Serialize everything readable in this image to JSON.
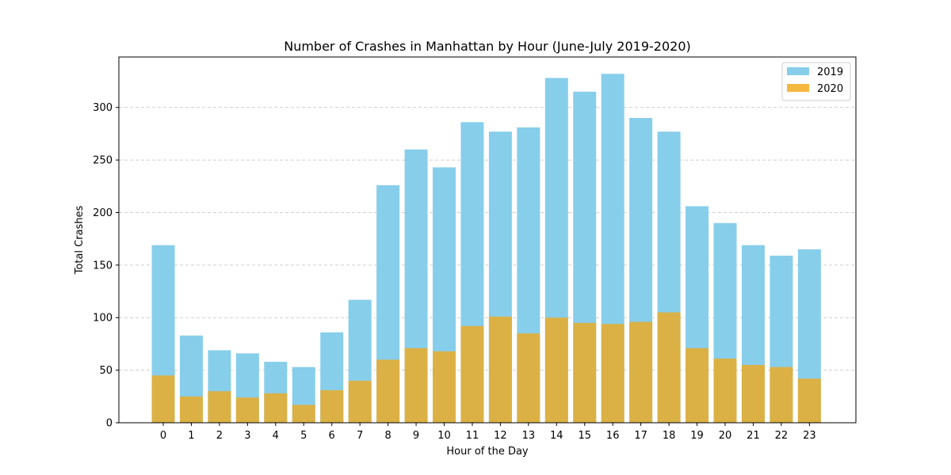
{
  "chart_data": {
    "type": "bar",
    "title": "Number of Crashes in Manhattan by Hour (June-July 2019-2020)",
    "xlabel": "Hour of the Day",
    "ylabel": "Total Crashes",
    "ylim": [
      0,
      348
    ],
    "yticks": [
      0,
      50,
      100,
      150,
      200,
      250,
      300
    ],
    "grid": "y-dashed",
    "legend_position": "top-right",
    "categories": [
      "0",
      "1",
      "2",
      "3",
      "4",
      "5",
      "6",
      "7",
      "8",
      "9",
      "10",
      "11",
      "12",
      "13",
      "14",
      "15",
      "16",
      "17",
      "18",
      "19",
      "20",
      "21",
      "22",
      "23"
    ],
    "series": [
      {
        "name": "2019",
        "color": "#87CEEB",
        "values": [
          169,
          83,
          69,
          66,
          58,
          53,
          86,
          117,
          226,
          260,
          243,
          286,
          277,
          281,
          328,
          315,
          332,
          290,
          277,
          206,
          190,
          169,
          159,
          165
        ]
      },
      {
        "name": "2020",
        "color": "#F5B83F",
        "values": [
          45,
          25,
          30,
          24,
          28,
          17,
          31,
          40,
          60,
          71,
          68,
          92,
          101,
          85,
          100,
          95,
          94,
          96,
          105,
          71,
          61,
          55,
          53,
          42
        ]
      }
    ]
  }
}
